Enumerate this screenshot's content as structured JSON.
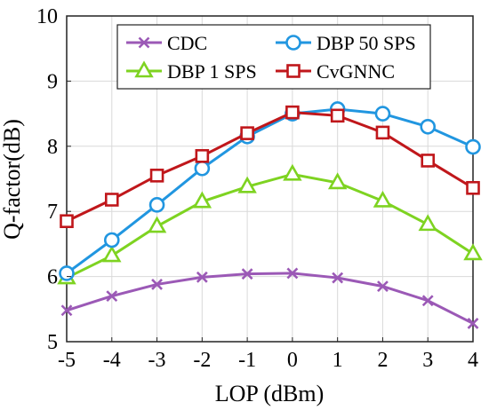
{
  "chart_data": {
    "type": "line",
    "xlabel": "LOP (dBm)",
    "ylabel": "Q-factor(dB)",
    "x": [
      -5,
      -4,
      -3,
      -2,
      -1,
      0,
      1,
      2,
      3,
      4
    ],
    "xlim": [
      -5,
      4
    ],
    "ylim": [
      5,
      10
    ],
    "xticks": [
      "-5",
      "-4",
      "-3",
      "-2",
      "-1",
      "0",
      "1",
      "2",
      "3",
      "4"
    ],
    "yticks": [
      "5",
      "6",
      "7",
      "8",
      "9",
      "10"
    ],
    "grid": true,
    "legend_position": "top",
    "series": [
      {
        "name": "CDC",
        "color": "#9b59b6",
        "marker": "x",
        "values": [
          5.48,
          5.7,
          5.88,
          5.99,
          6.04,
          6.05,
          5.98,
          5.85,
          5.63,
          5.28
        ]
      },
      {
        "name": "DBP 1 SPS",
        "color": "#7ed321",
        "marker": "triangle",
        "values": [
          5.98,
          6.32,
          6.77,
          7.15,
          7.38,
          7.57,
          7.44,
          7.16,
          6.8,
          6.35
        ]
      },
      {
        "name": "DBP 50 SPS",
        "color": "#2196e0",
        "marker": "circle",
        "values": [
          6.05,
          6.56,
          7.1,
          7.66,
          8.15,
          8.5,
          8.57,
          8.5,
          8.3,
          7.99
        ]
      },
      {
        "name": "CvGNNC",
        "color": "#c0171b",
        "marker": "square",
        "values": [
          6.85,
          7.18,
          7.55,
          7.85,
          8.2,
          8.52,
          8.47,
          8.21,
          7.78,
          7.36
        ]
      }
    ]
  }
}
